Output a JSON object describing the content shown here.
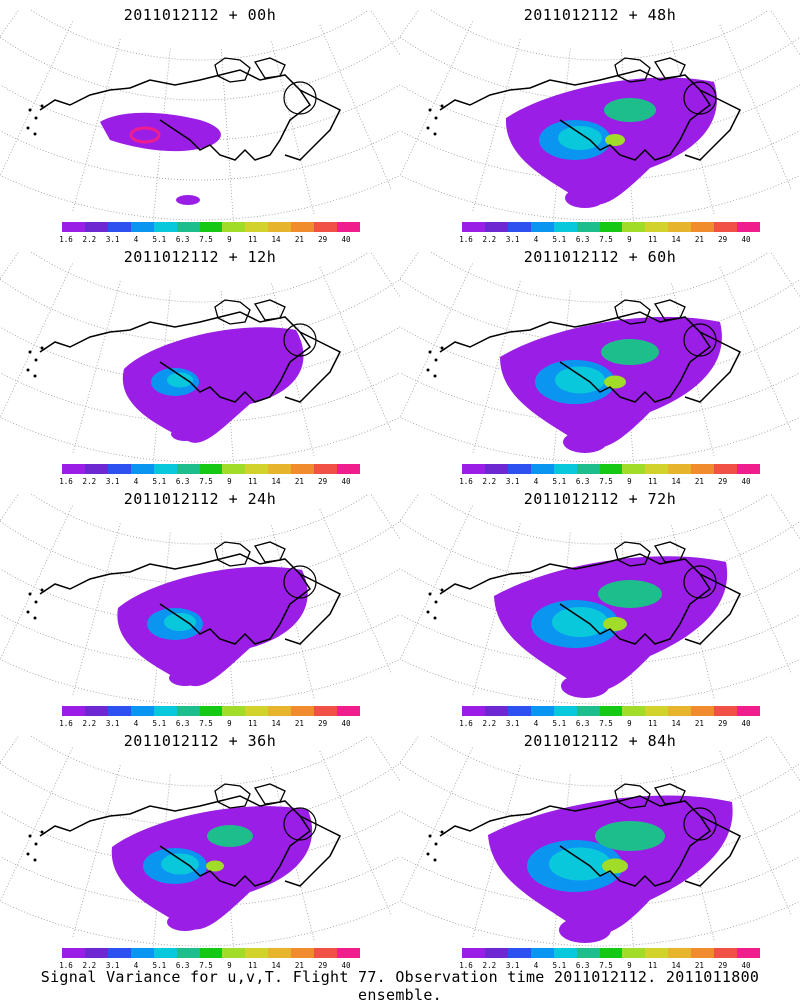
{
  "panels": [
    {
      "title": "2011012112 + 00h",
      "level": 0
    },
    {
      "title": "2011012112 + 48h",
      "level": 4
    },
    {
      "title": "2011012112 + 12h",
      "level": 1
    },
    {
      "title": "2011012112 + 60h",
      "level": 5
    },
    {
      "title": "2011012112 + 24h",
      "level": 2
    },
    {
      "title": "2011012112 + 72h",
      "level": 6
    },
    {
      "title": "2011012112 + 36h",
      "level": 3
    },
    {
      "title": "2011012112 + 84h",
      "level": 7
    }
  ],
  "colorbar": {
    "colors": [
      "#9b1ee6",
      "#6e28d2",
      "#2d50f0",
      "#0a96f0",
      "#0ac8dc",
      "#1ebe8c",
      "#14c814",
      "#a0dc28",
      "#d2d22d",
      "#e6b42d",
      "#f08c2d",
      "#f05046",
      "#f01e8c"
    ],
    "labels": [
      "1.6",
      "2.2",
      "3.1",
      "4",
      "5.1",
      "6.3",
      "7.5",
      "9",
      "11",
      "14",
      "21",
      "29",
      "40"
    ]
  },
  "footer": "Signal Variance for u,v,T. Flight 77. Observation time 2011012112. 2011011800 ensemble."
}
